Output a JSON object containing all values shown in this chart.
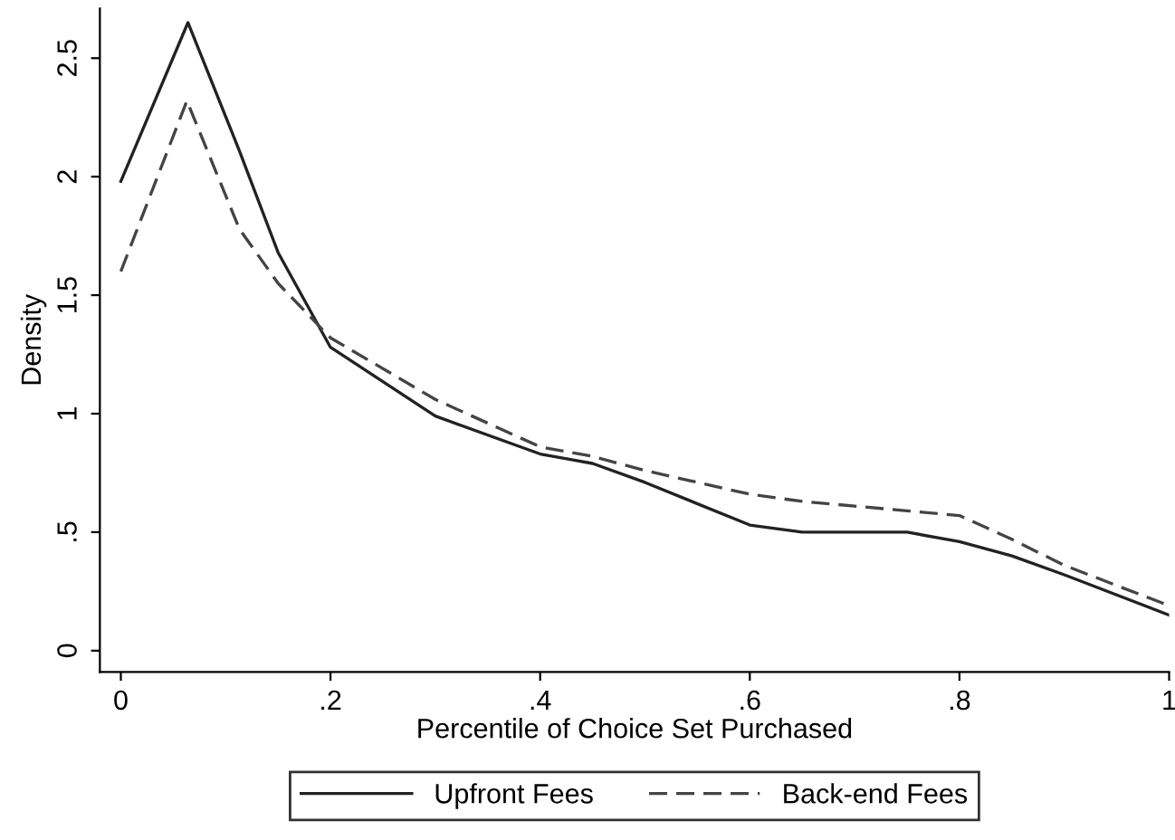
{
  "chart_data": {
    "type": "line",
    "xlabel": "Percentile of Choice Set Purchased",
    "ylabel": "Density",
    "xlim": [
      -0.02,
      1
    ],
    "ylim": [
      -0.09,
      2.71
    ],
    "xticks": [
      0,
      {
        "value": 0.2,
        "label": ".2"
      },
      {
        "value": 0.4,
        "label": ".4"
      },
      {
        "value": 0.6,
        "label": ".6"
      },
      {
        "value": 0.8,
        "label": ".8"
      },
      1
    ],
    "yticks": [
      0,
      {
        "value": 0.5,
        "label": ".5"
      },
      1,
      1.5,
      2,
      2.5
    ],
    "legend": "bottom",
    "grid": false,
    "marker": "none",
    "series": [
      {
        "name": "Upfront Fees",
        "color": "#222222",
        "line_style": "solid",
        "x": [
          0,
          0.064,
          0.113,
          0.15,
          0.2,
          0.3,
          0.4,
          0.45,
          0.5,
          0.6,
          0.65,
          0.7,
          0.75,
          0.8,
          0.85,
          0.9,
          1
        ],
        "values": [
          1.98,
          2.65,
          2.11,
          1.68,
          1.28,
          0.99,
          0.83,
          0.79,
          0.71,
          0.53,
          0.5,
          0.5,
          0.5,
          0.46,
          0.4,
          0.32,
          0.15
        ]
      },
      {
        "name": "Back-end Fees",
        "color": "#444444",
        "line_style": "dashed",
        "x": [
          0,
          0.063,
          0.113,
          0.15,
          0.2,
          0.3,
          0.4,
          0.45,
          0.5,
          0.6,
          0.65,
          0.7,
          0.75,
          0.8,
          0.85,
          0.9,
          1
        ],
        "values": [
          1.6,
          2.32,
          1.78,
          1.55,
          1.32,
          1.06,
          0.86,
          0.82,
          0.76,
          0.66,
          0.63,
          0.61,
          0.59,
          0.57,
          0.47,
          0.36,
          0.19
        ]
      }
    ]
  }
}
